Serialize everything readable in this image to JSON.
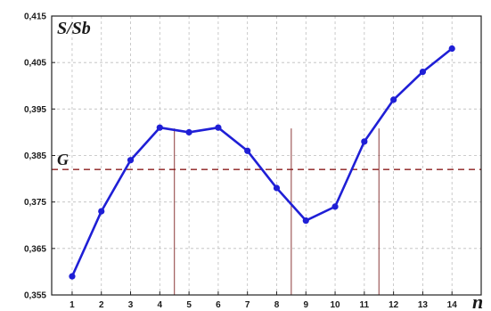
{
  "chart_data": {
    "type": "line",
    "ylabel": "S/Sb",
    "xlabel": "n",
    "x": [
      1,
      2,
      3,
      4,
      5,
      6,
      7,
      8,
      9,
      10,
      11,
      12,
      13,
      14
    ],
    "x_ticks": [
      "1",
      "2",
      "3",
      "4",
      "5",
      "6",
      "7",
      "8",
      "9",
      "10",
      "11",
      "12",
      "13",
      "14"
    ],
    "y_ticks": [
      "0,355",
      "0,365",
      "0,375",
      "0,385",
      "0,395",
      "0,405",
      "0,415"
    ],
    "y_tick_values": [
      0.355,
      0.365,
      0.375,
      0.385,
      0.395,
      0.405,
      0.415
    ],
    "ylim": [
      0.355,
      0.415
    ],
    "xlim": [
      0.3,
      15
    ],
    "grid": true,
    "series": [
      {
        "values": [
          0.359,
          0.373,
          0.384,
          0.391,
          0.39,
          0.391,
          0.386,
          0.378,
          0.371,
          0.374,
          0.388,
          0.397,
          0.403,
          0.408
        ]
      }
    ],
    "threshold": {
      "label": "G",
      "value": 0.382
    },
    "crossing_markers_x": [
      4.5,
      8.5,
      11.5
    ],
    "colors": {
      "line": "#1f1fd6",
      "threshold": "#8b1e1e",
      "markers": "#8b3a3a",
      "grid": "#bdbdbd"
    }
  }
}
